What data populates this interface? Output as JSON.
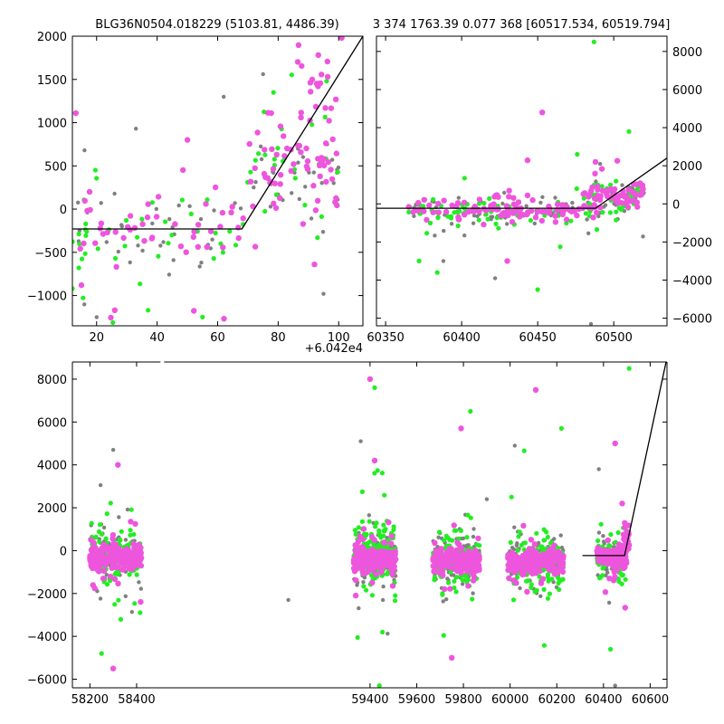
{
  "colors": {
    "gray": "#808080",
    "green": "#22ee22",
    "magenta": "#ee55dd",
    "model": "#000000"
  },
  "titles": {
    "left": "BLG36N0504.018229 (5103.81, 4486.39)",
    "right": "3 374 1763.39 0.077 368 [60517.534, 60519.794]"
  },
  "chart_data": [
    {
      "name": "zoom-left",
      "type": "scatter",
      "title": "BLG36N0504.018229 (5103.81, 4486.39)",
      "xlim": [
        12,
        108
      ],
      "ylim": [
        -1350,
        2000
      ],
      "xticks": [
        20,
        40,
        60,
        80,
        100
      ],
      "xtick_labels": [
        "20",
        "40",
        "60",
        "80",
        "100"
      ],
      "yticks": [
        -1000,
        -500,
        0,
        500,
        1000,
        1500,
        2000
      ],
      "ytick_labels": [
        "−1000",
        "−500",
        "0",
        "500",
        "1000",
        "1500",
        "2000"
      ],
      "ytick_side": "left",
      "offset_text": "+6.042e4",
      "model_line": {
        "x": [
          12,
          68,
          108
        ],
        "y": [
          -230,
          -230,
          2000
        ]
      },
      "series": [
        {
          "color": "gray",
          "size": 2.2,
          "seed": 11,
          "clusters": [
            {
              "x": [
                12,
                70
              ],
              "center": -200,
              "spread": 450,
              "n": 35
            },
            {
              "x": [
                70,
                100
              ],
              "center": 400,
              "spread": 450,
              "n": 30
            }
          ],
          "outliers": [
            [
              20,
              -1250
            ],
            [
              62,
              1300
            ],
            [
              75,
              1560
            ],
            [
              95,
              -980
            ],
            [
              33,
              930
            ]
          ]
        },
        {
          "color": "green",
          "size": 2.6,
          "seed": 23,
          "clusters": [
            {
              "x": [
                12,
                70
              ],
              "center": -250,
              "spread": 450,
              "n": 40
            },
            {
              "x": [
                70,
                100
              ],
              "center": 400,
              "spread": 500,
              "n": 25
            }
          ],
          "outliers": [
            [
              12,
              -920
            ],
            [
              37,
              -1170
            ],
            [
              55,
              -1250
            ],
            [
              96,
              1480
            ],
            [
              93,
              -330
            ]
          ]
        },
        {
          "color": "magenta",
          "size": 3.2,
          "seed": 37,
          "clusters": [
            {
              "x": [
                12,
                70
              ],
              "center": -200,
              "spread": 450,
              "n": 50
            },
            {
              "x": [
                70,
                100
              ],
              "center": 500,
              "spread": 500,
              "n": 60
            },
            {
              "x": [
                86,
                102
              ],
              "center": 1400,
              "spread": 350,
              "n": 20
            }
          ],
          "outliers": [
            [
              26,
              -1170
            ],
            [
              50,
              800
            ],
            [
              15,
              -880
            ],
            [
              101,
              1980
            ],
            [
              92,
              -640
            ]
          ]
        }
      ]
    },
    {
      "name": "zoom-right",
      "type": "scatter",
      "title": "3 374 1763.39 0.077 368 [60517.534, 60519.794]",
      "xlim": [
        60344,
        60535
      ],
      "ylim": [
        -6400,
        8800
      ],
      "xticks": [
        60350,
        60400,
        60450,
        60500
      ],
      "xtick_labels": [
        "60350",
        "60400",
        "60450",
        "60500"
      ],
      "yticks": [
        -6000,
        -4000,
        -2000,
        0,
        2000,
        4000,
        6000,
        8000
      ],
      "ytick_labels": [
        "−6000",
        "−4000",
        "−2000",
        "0",
        "2000",
        "4000",
        "6000",
        "8000"
      ],
      "ytick_side": "right",
      "model_line": {
        "x": [
          60344,
          60488,
          60535
        ],
        "y": [
          -230,
          -230,
          2400
        ]
      },
      "series": [
        {
          "color": "gray",
          "size": 2.2,
          "seed": 51,
          "clusters": [
            {
              "x": [
                60365,
                60490
              ],
              "center": -400,
              "spread": 700,
              "n": 60
            },
            {
              "x": [
                60485,
                60520
              ],
              "center": 300,
              "spread": 700,
              "n": 35
            }
          ],
          "outliers": [
            [
              60485,
              -6300
            ],
            [
              60422,
              -3900
            ],
            [
              60491,
              2100
            ],
            [
              60388,
              -3000
            ]
          ]
        },
        {
          "color": "green",
          "size": 2.6,
          "seed": 63,
          "clusters": [
            {
              "x": [
                60365,
                60490
              ],
              "center": -500,
              "spread": 800,
              "n": 70
            },
            {
              "x": [
                60485,
                60520
              ],
              "center": 300,
              "spread": 800,
              "n": 30
            }
          ],
          "outliers": [
            [
              60487,
              8500
            ],
            [
              60372,
              -3000
            ],
            [
              60384,
              -3600
            ],
            [
              60450,
              -4500
            ],
            [
              60510,
              3800
            ],
            [
              60476,
              2600
            ]
          ]
        },
        {
          "color": "magenta",
          "size": 3.2,
          "seed": 77,
          "clusters": [
            {
              "x": [
                60365,
                60490
              ],
              "center": -300,
              "spread": 600,
              "n": 110
            },
            {
              "x": [
                60480,
                60520
              ],
              "center": 500,
              "spread": 500,
              "n": 60
            }
          ],
          "outliers": [
            [
              60453,
              4800
            ],
            [
              60488,
              2200
            ],
            [
              60430,
              -3000
            ]
          ]
        }
      ]
    },
    {
      "name": "full-lightcurve",
      "type": "scatter",
      "xlim": [
        58125,
        60672
      ],
      "ylim": [
        -6400,
        8800
      ],
      "xticks": [
        58200,
        58400,
        59400,
        59600,
        59800,
        60000,
        60200,
        60400,
        60600
      ],
      "xtick_labels": [
        "58200",
        "58400",
        "59400",
        "59600",
        "59800",
        "60000",
        "60200",
        "60400",
        "60600"
      ],
      "yticks": [
        -6000,
        -4000,
        -2000,
        0,
        2000,
        4000,
        6000,
        8000
      ],
      "ytick_labels": [
        "−6000",
        "−4000",
        "−2000",
        "0",
        "2000",
        "4000",
        "6000",
        "8000"
      ],
      "ytick_side": "left",
      "axis_break": 58510,
      "model_line": {
        "x": [
          60310,
          60490,
          60672
        ],
        "y": [
          -230,
          -230,
          9000
        ]
      },
      "series": [
        {
          "color": "gray",
          "size": 2.2,
          "seed": 101,
          "clusters": [
            {
              "x": [
                58200,
                58420
              ],
              "center": -200,
              "spread": 900,
              "n": 120
            },
            {
              "x": [
                59330,
                59510
              ],
              "center": -300,
              "spread": 900,
              "n": 140
            },
            {
              "x": [
                59670,
                59870
              ],
              "center": -400,
              "spread": 900,
              "n": 120
            },
            {
              "x": [
                59990,
                60230
              ],
              "center": -400,
              "spread": 900,
              "n": 110
            },
            {
              "x": [
                60370,
                60500
              ],
              "center": -300,
              "spread": 900,
              "n": 70
            }
          ],
          "outliers": [
            [
              58300,
              4700
            ],
            [
              59050,
              -2300
            ],
            [
              59360,
              5100
            ],
            [
              59900,
              2400
            ],
            [
              60020,
              4900
            ],
            [
              60450,
              -6300
            ],
            [
              60380,
              3800
            ]
          ]
        },
        {
          "color": "green",
          "size": 2.6,
          "seed": 131,
          "clusters": [
            {
              "x": [
                58200,
                58420
              ],
              "center": -100,
              "spread": 1200,
              "n": 110
            },
            {
              "x": [
                59330,
                59510
              ],
              "center": -100,
              "spread": 1300,
              "n": 150
            },
            {
              "x": [
                59670,
                59870
              ],
              "center": -500,
              "spread": 1200,
              "n": 110
            },
            {
              "x": [
                59990,
                60230
              ],
              "center": -600,
              "spread": 1300,
              "n": 110
            },
            {
              "x": [
                60370,
                60500
              ],
              "center": -300,
              "spread": 1100,
              "n": 60
            }
          ],
          "outliers": [
            [
              59420,
              7600
            ],
            [
              59830,
              6500
            ],
            [
              60510,
              8500
            ],
            [
              59440,
              -6300
            ],
            [
              60220,
              5700
            ],
            [
              58250,
              -4800
            ],
            [
              60430,
              -4600
            ]
          ]
        },
        {
          "color": "magenta",
          "size": 3.2,
          "seed": 157,
          "clusters": [
            {
              "x": [
                58200,
                58420
              ],
              "center": -300,
              "spread": 500,
              "n": 220
            },
            {
              "x": [
                59330,
                59510
              ],
              "center": -400,
              "spread": 500,
              "n": 260
            },
            {
              "x": [
                59670,
                59870
              ],
              "center": -500,
              "spread": 500,
              "n": 200
            },
            {
              "x": [
                59990,
                60230
              ],
              "center": -500,
              "spread": 500,
              "n": 200
            },
            {
              "x": [
                60370,
                60500
              ],
              "center": -300,
              "spread": 500,
              "n": 110
            },
            {
              "x": [
                60485,
                60510
              ],
              "center": 700,
              "spread": 700,
              "n": 20
            }
          ],
          "outliers": [
            [
              59400,
              8000
            ],
            [
              59420,
              4200
            ],
            [
              60110,
              7500
            ],
            [
              58320,
              4000
            ],
            [
              60450,
              5000
            ],
            [
              59750,
              -5000
            ],
            [
              58300,
              -5500
            ],
            [
              59790,
              5700
            ],
            [
              60480,
              2200
            ]
          ]
        }
      ]
    }
  ]
}
